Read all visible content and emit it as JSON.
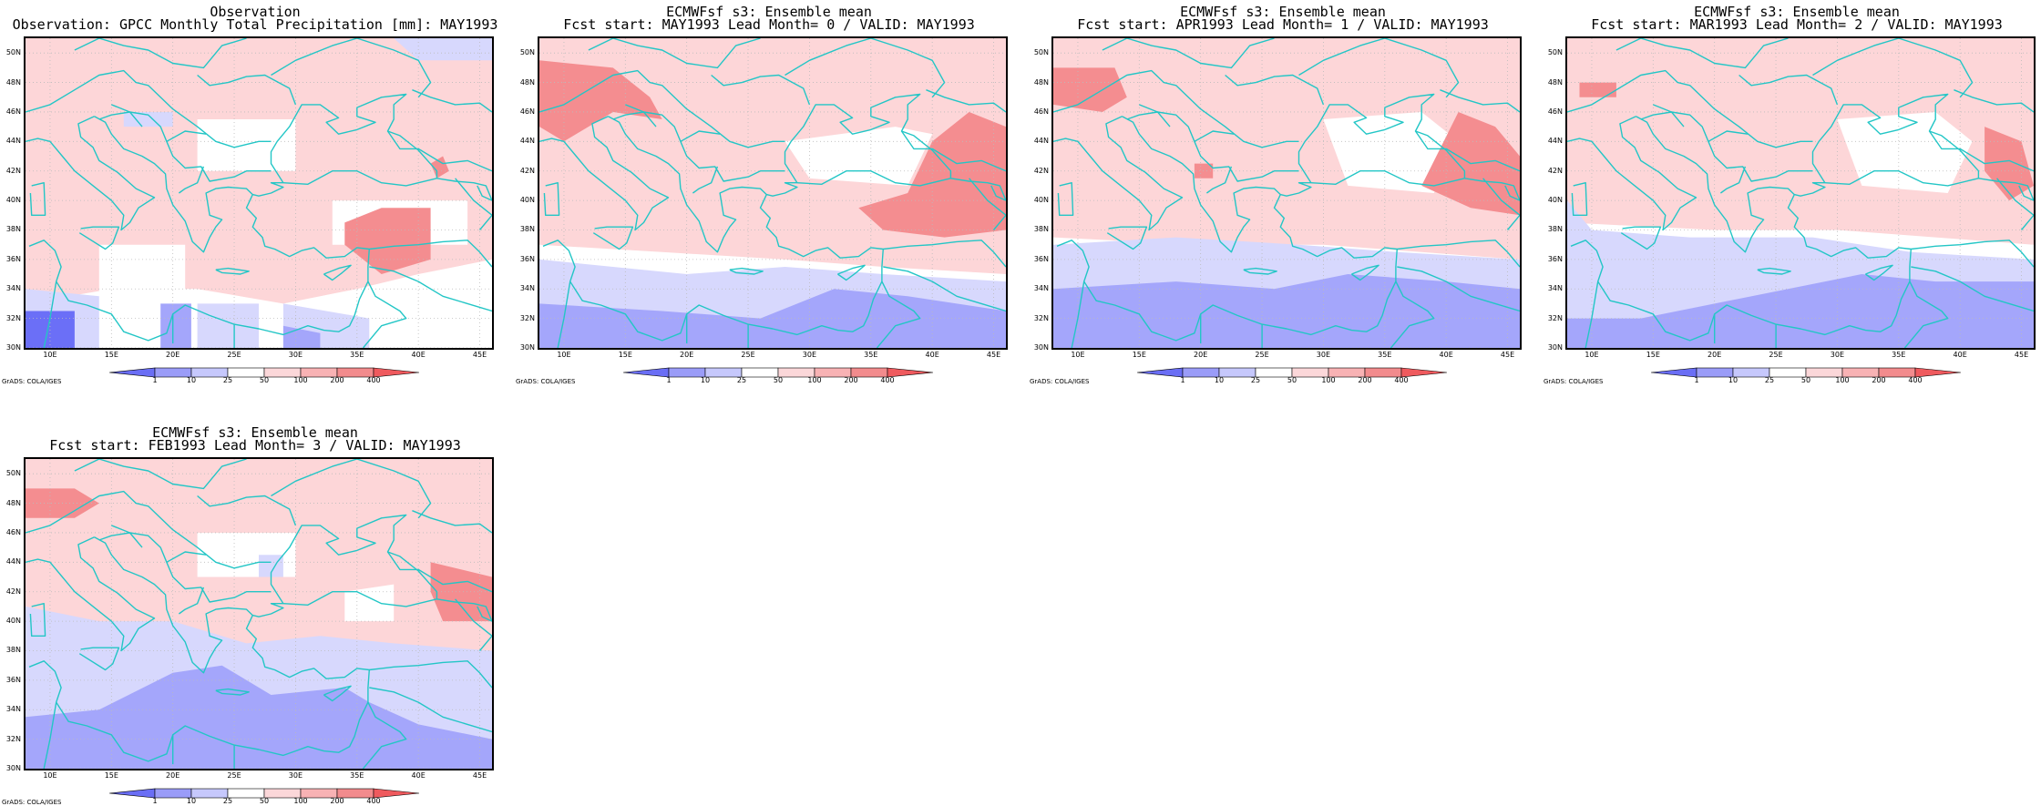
{
  "figure": {
    "common": {
      "map_extent": {
        "lon_range": [
          8,
          46
        ],
        "lat_range": [
          30,
          51
        ]
      },
      "lat_ticks": [
        "30N",
        "32N",
        "34N",
        "36N",
        "38N",
        "40N",
        "42N",
        "44N",
        "46N",
        "48N",
        "50N"
      ],
      "lon_ticks": [
        "10E",
        "15E",
        "20E",
        "25E",
        "30E",
        "35E",
        "40E",
        "45E"
      ],
      "credit": "GrADS: COLA/IGES",
      "colorbar": {
        "levels": [
          "1",
          "10",
          "25",
          "50",
          "100",
          "200",
          "400"
        ],
        "colors": [
          "#6a6ef5",
          "#9a9cf8",
          "#c6c8fc",
          "#ffffff",
          "#fbd7d9",
          "#f8b2b4",
          "#f28b8d",
          "#ef5a5e"
        ]
      },
      "palette": {
        "blue_strong": "#6b6ff7",
        "blue_mid": "#a4a6fb",
        "blue_light": "#d7d8fd",
        "pink_light": "#fdd6d8",
        "pink_mid": "#f9b6b8",
        "red_mid": "#f48d90",
        "coast": "#23c6c6",
        "grid": "#bbbbbb"
      }
    },
    "panels": [
      {
        "title1": "Observation",
        "title2": "Observation: GPCC Monthly Total Precipitation [mm]: MAY1993"
      },
      {
        "title1": "ECMWFsf s3: Ensemble mean",
        "title2": "Fcst start: MAY1993  Lead Month= 0 / VALID: MAY1993"
      },
      {
        "title1": "ECMWFsf s3: Ensemble mean",
        "title2": "Fcst start: APR1993  Lead Month= 1 / VALID: MAY1993"
      },
      {
        "title1": "ECMWFsf s3: Ensemble mean",
        "title2": "Fcst start: MAR1993  Lead Month= 2 / VALID: MAY1993"
      },
      {
        "title1": "ECMWFsf s3: Ensemble mean",
        "title2": "Fcst start: FEB1993  Lead Month= 3 / VALID: MAY1993"
      }
    ]
  }
}
